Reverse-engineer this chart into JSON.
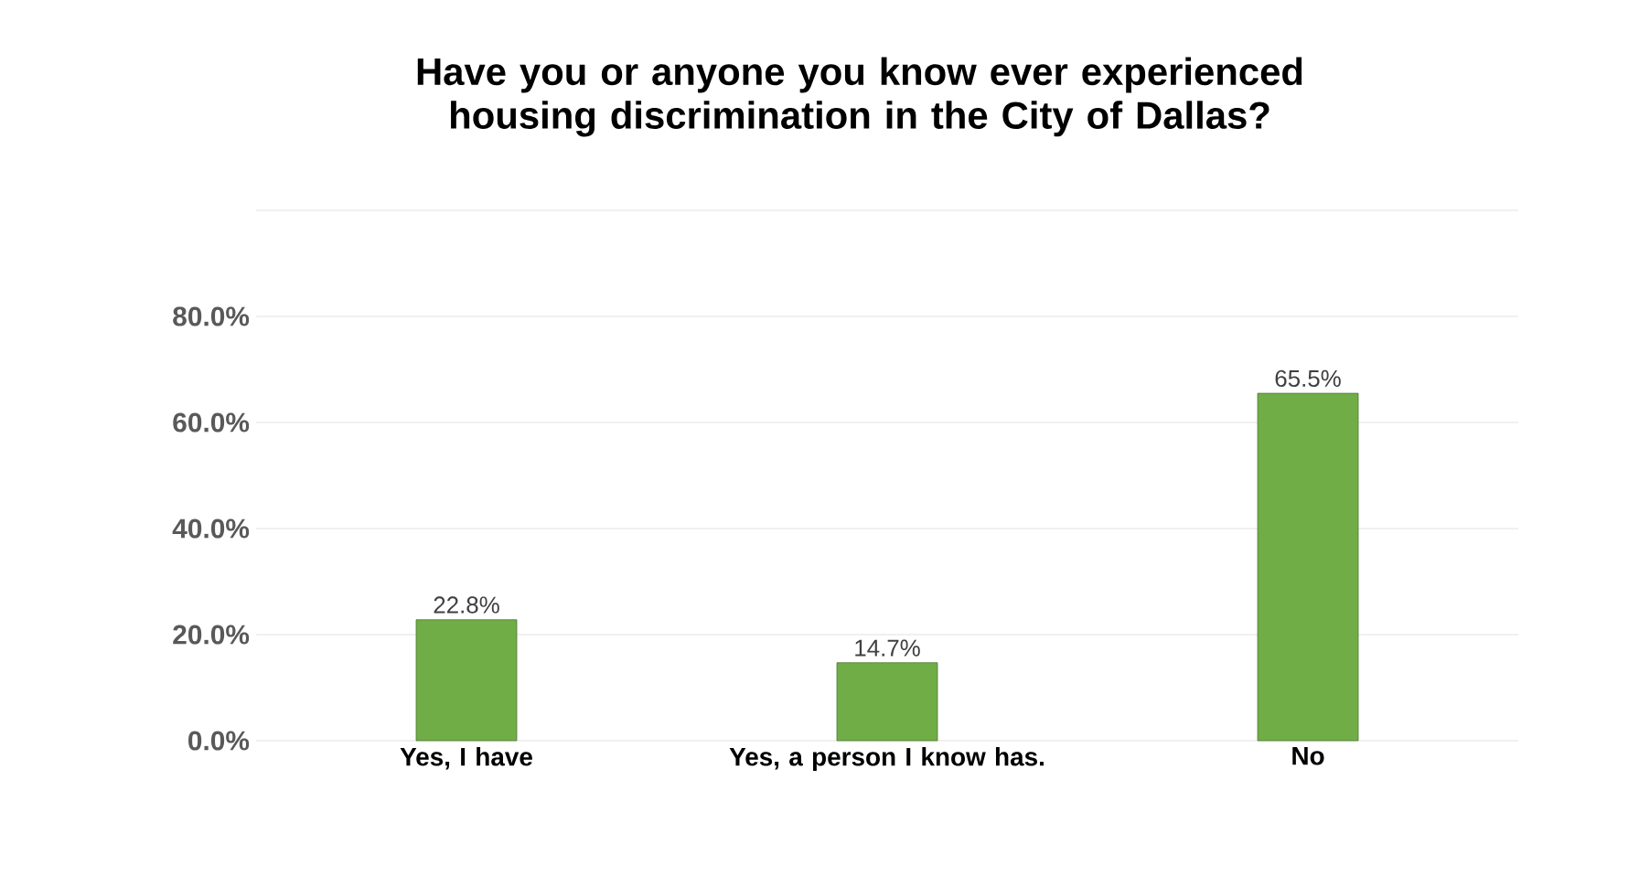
{
  "chart_data": {
    "type": "bar",
    "title": "Have you or anyone you know ever experienced housing discrimination in the City of Dallas?",
    "categories": [
      "Yes, I have",
      "Yes, a person I know has.",
      "No"
    ],
    "values": [
      22.8,
      14.7,
      65.5
    ],
    "value_labels": [
      "22.8%",
      "14.7%",
      "65.5%"
    ],
    "color": "#70ad47",
    "ylim": [
      0,
      100
    ],
    "yticks": [
      {
        "value": 0,
        "label": "0.0%"
      },
      {
        "value": 20,
        "label": "20.0%"
      },
      {
        "value": 40,
        "label": "40.0%"
      },
      {
        "value": 60,
        "label": "60.0%"
      },
      {
        "value": 80,
        "label": "80.0%"
      },
      {
        "value": 100,
        "label": null
      }
    ],
    "grid": "y"
  }
}
